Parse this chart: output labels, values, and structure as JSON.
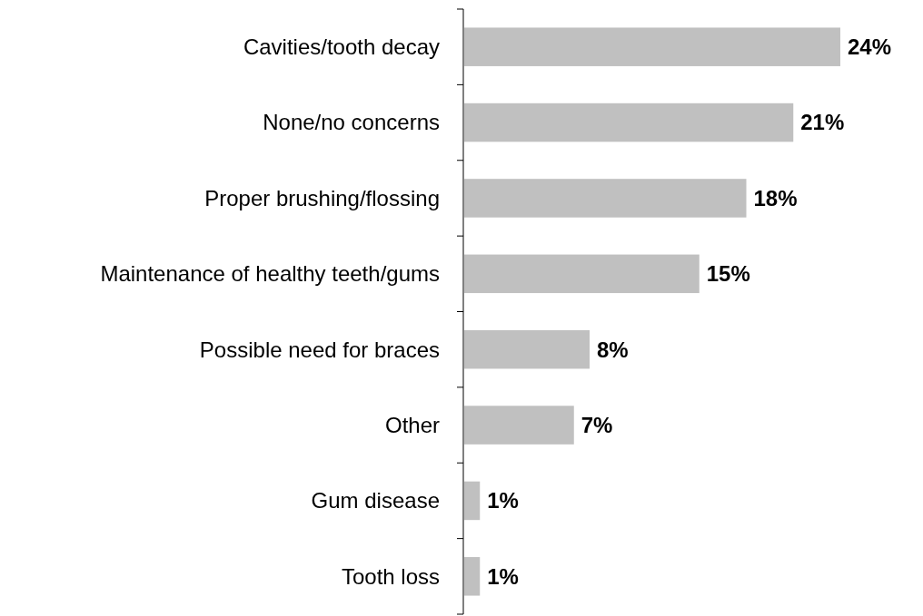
{
  "chart_data": {
    "type": "bar",
    "orientation": "horizontal",
    "categories": [
      "Cavities/tooth decay",
      "None/no concerns",
      "Proper brushing/flossing",
      "Maintenance of healthy teeth/gums",
      "Possible need for braces",
      "Other",
      "Gum disease",
      "Tooth loss"
    ],
    "values": [
      24,
      21,
      18,
      15,
      8,
      7,
      1,
      1
    ],
    "value_labels": [
      "24%",
      "21%",
      "18%",
      "15%",
      "8%",
      "7%",
      "1%",
      "1%"
    ],
    "color": "#c0c0c0"
  }
}
